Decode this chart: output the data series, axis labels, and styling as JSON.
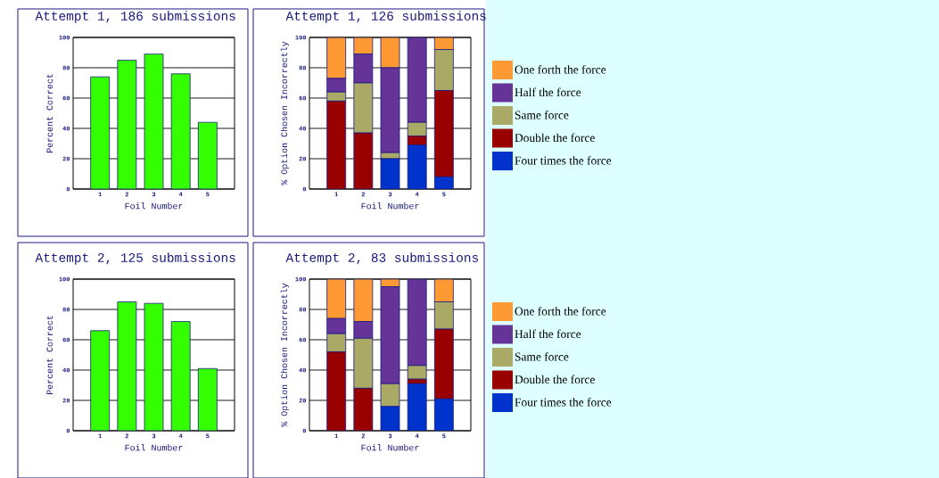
{
  "chart_data": [
    {
      "type": "bar",
      "title": "Attempt 1, 186 submissions",
      "xlabel": "Foil Number",
      "ylabel": "Percent Correct",
      "categories": [
        "1",
        "2",
        "3",
        "4",
        "5"
      ],
      "values": [
        74,
        85,
        89,
        76,
        44
      ],
      "color": "#33ff00",
      "ylim": [
        0,
        100
      ],
      "yticks": [
        0,
        20,
        40,
        60,
        80,
        100
      ],
      "grid": "y"
    },
    {
      "type": "bar",
      "stacked": true,
      "title": "Attempt 1, 126 submissions",
      "xlabel": "Foil Number",
      "ylabel": "% Option Chosen Incorrectly",
      "categories": [
        "1",
        "2",
        "3",
        "4",
        "5"
      ],
      "ylim": [
        0,
        100
      ],
      "yticks": [
        0,
        20,
        40,
        60,
        80,
        100
      ],
      "grid": "y",
      "legend": "right",
      "series": [
        {
          "name": "Four times the force",
          "color": "#0033cc",
          "values": [
            0,
            0,
            20,
            29,
            8
          ]
        },
        {
          "name": "Double the force",
          "color": "#990000",
          "values": [
            58,
            37,
            0,
            6,
            57
          ]
        },
        {
          "name": "Same force",
          "color": "#aaaa66",
          "values": [
            6,
            33,
            4,
            9,
            27
          ]
        },
        {
          "name": "Half the force",
          "color": "#663399",
          "values": [
            9,
            19,
            56,
            56,
            0
          ]
        },
        {
          "name": "One forth the force",
          "color": "#ff9933",
          "values": [
            27,
            11,
            20,
            0,
            8
          ]
        }
      ]
    },
    {
      "type": "bar",
      "title": "Attempt 2, 125 submissions",
      "xlabel": "Foil Number",
      "ylabel": "Percent Correct",
      "categories": [
        "1",
        "2",
        "3",
        "4",
        "5"
      ],
      "values": [
        66,
        85,
        84,
        72,
        41
      ],
      "color": "#33ff00",
      "ylim": [
        0,
        100
      ],
      "yticks": [
        0,
        20,
        40,
        60,
        80,
        100
      ],
      "grid": "y"
    },
    {
      "type": "bar",
      "stacked": true,
      "title": "Attempt 2, 83 submissions",
      "xlabel": "Foil Number",
      "ylabel": "% Option Chosen Incorrectly",
      "categories": [
        "1",
        "2",
        "3",
        "4",
        "5"
      ],
      "ylim": [
        0,
        100
      ],
      "yticks": [
        0,
        20,
        40,
        60,
        80,
        100
      ],
      "grid": "y",
      "legend": "right",
      "series": [
        {
          "name": "Four times the force",
          "color": "#0033cc",
          "values": [
            0,
            0,
            16,
            31,
            21
          ]
        },
        {
          "name": "Double the force",
          "color": "#990000",
          "values": [
            52,
            28,
            0,
            3,
            46
          ]
        },
        {
          "name": "Same force",
          "color": "#aaaa66",
          "values": [
            12,
            33,
            15,
            9,
            18
          ]
        },
        {
          "name": "Half the force",
          "color": "#663399",
          "values": [
            10,
            11,
            64,
            57,
            0
          ]
        },
        {
          "name": "One forth the force",
          "color": "#ff9933",
          "values": [
            26,
            28,
            5,
            0,
            15
          ]
        }
      ]
    }
  ]
}
